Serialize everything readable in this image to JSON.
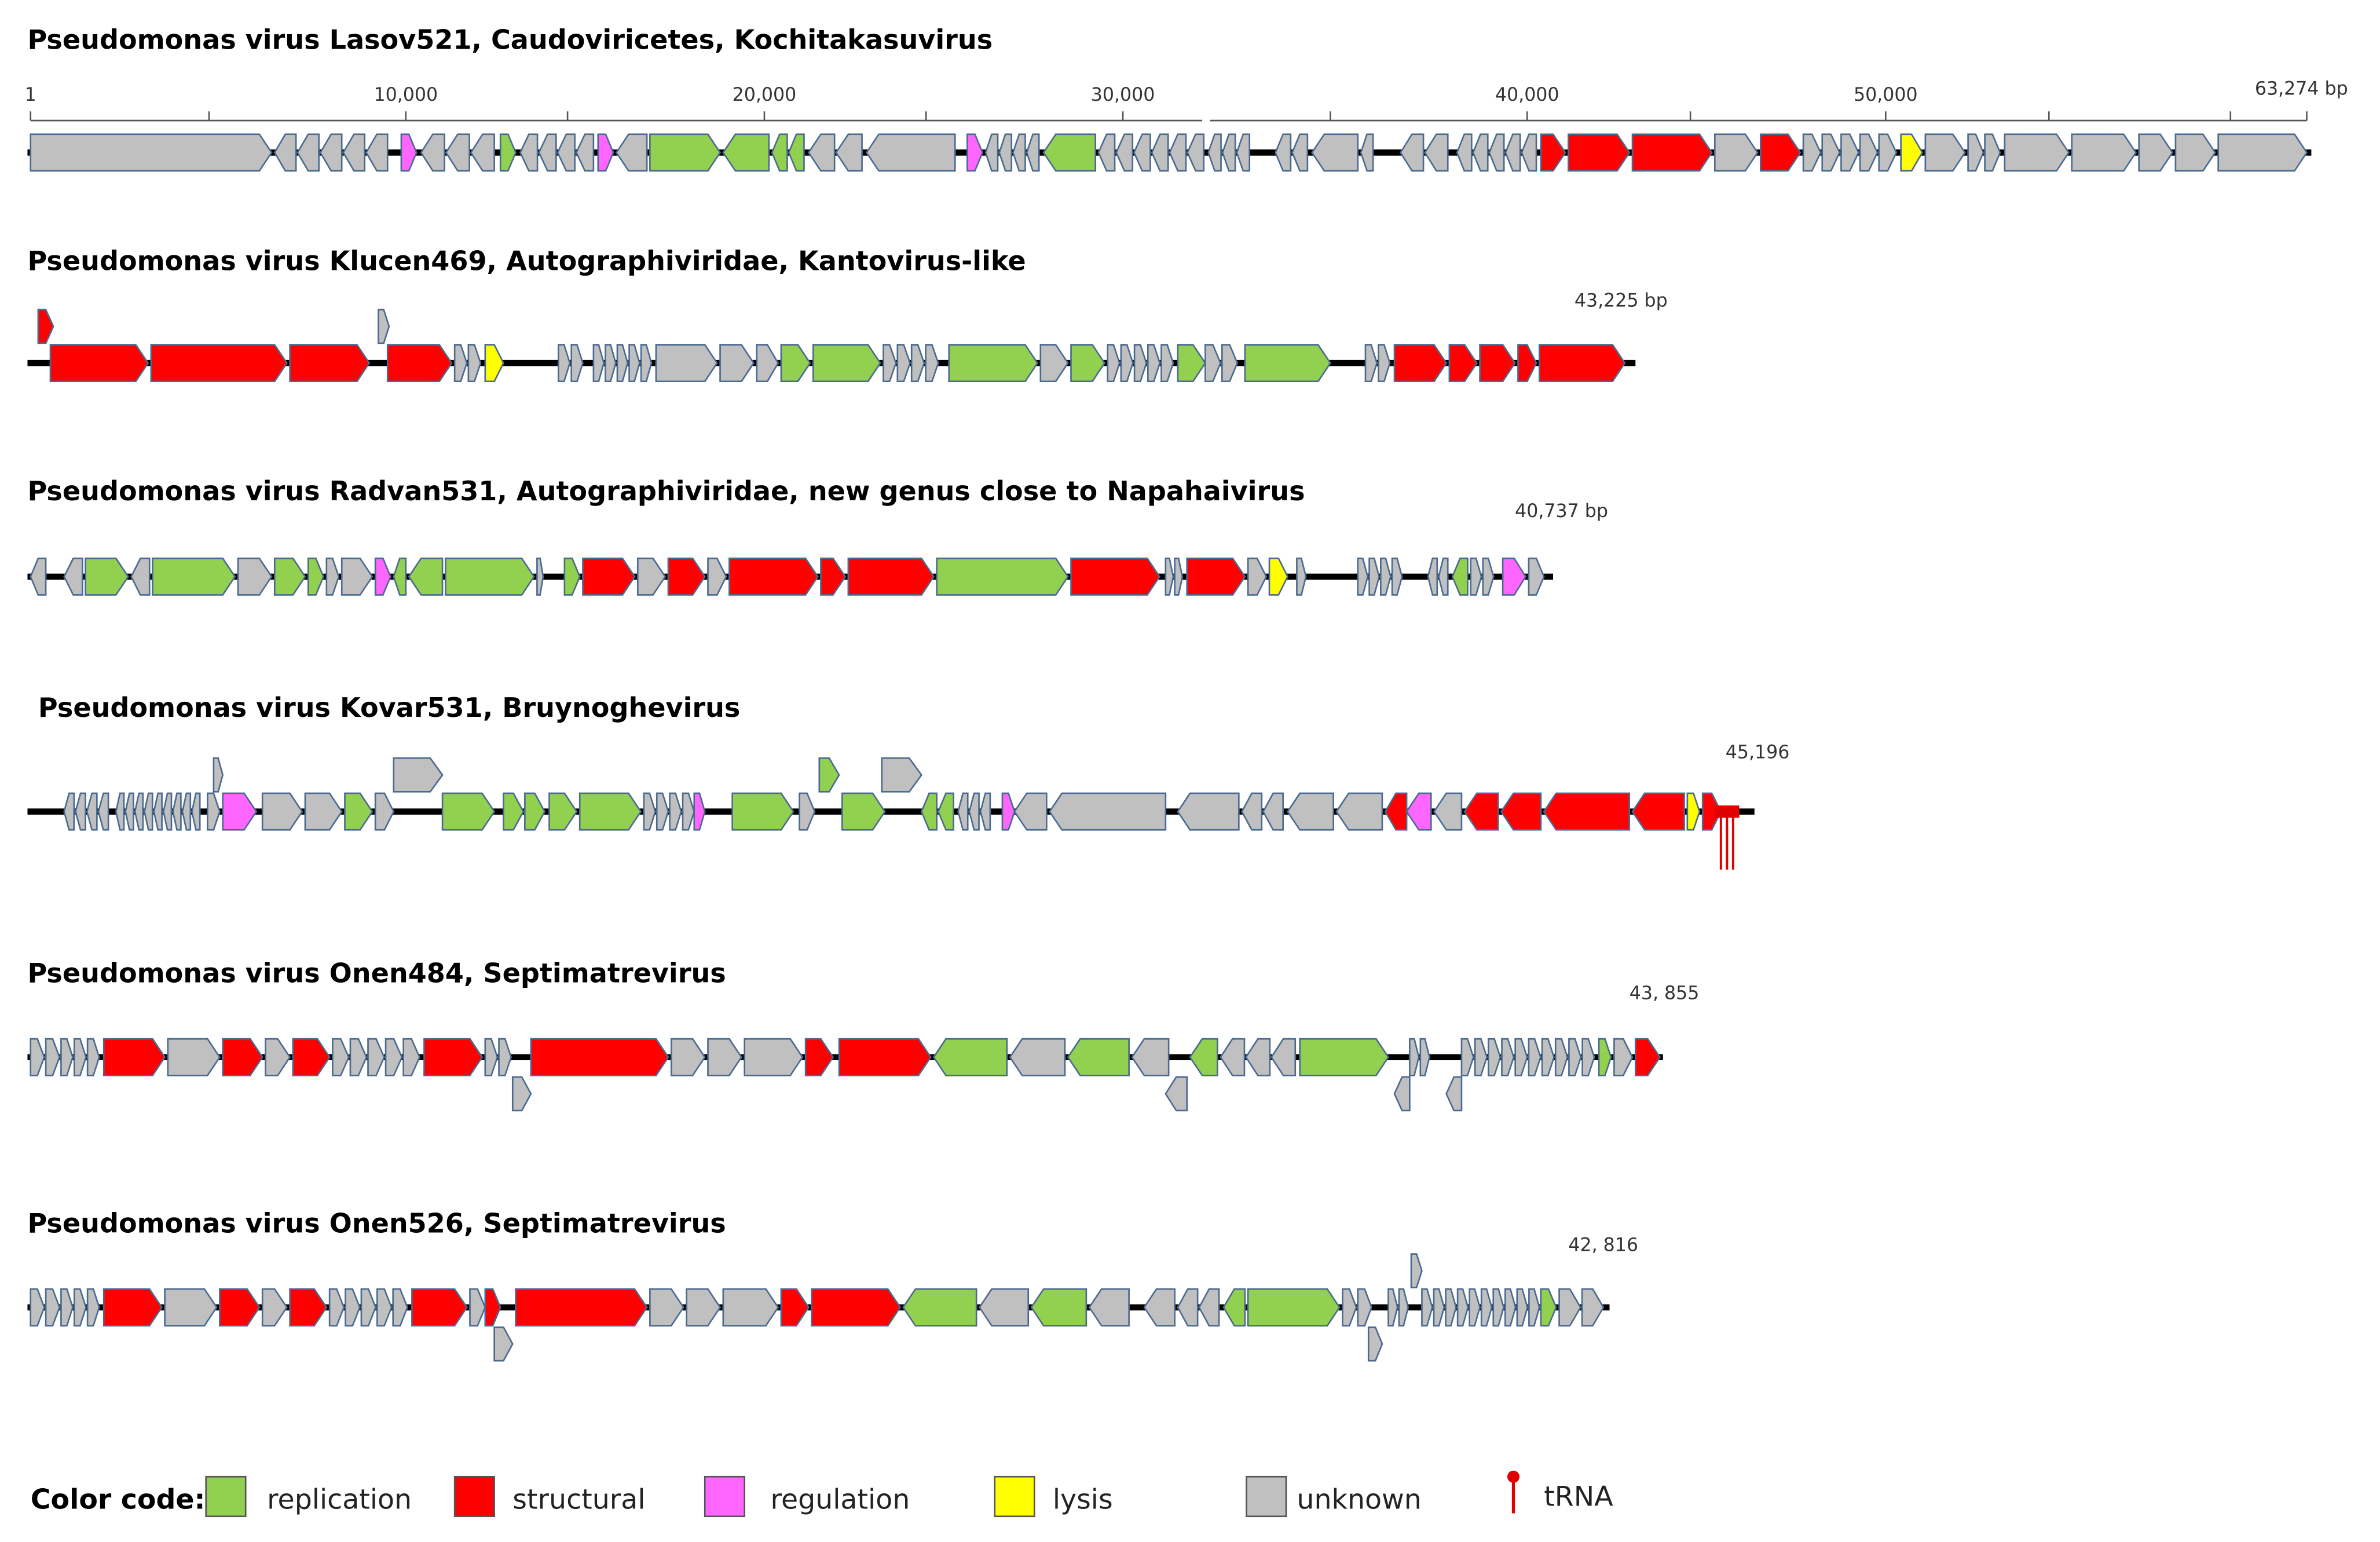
{
  "genomes": [
    {
      "title": "Pseudomonas virus Lasov521, Caudoviricetes, Kochitakasuvirus",
      "length_label": "63,274 bp",
      "ruler_ticks": [
        "1",
        "10,000",
        "20,000",
        "30,000",
        "40,000",
        "50,000"
      ]
    },
    {
      "title": "Pseudomonas virus Klucen469, Autographiviridae, Kantovirus-like",
      "length_label": "43,225 bp"
    },
    {
      "title": "Pseudomonas virus Radvan531, Autographiviridae, new genus close to Napahaivirus",
      "length_label": "40,737 bp"
    },
    {
      "title": "Pseudomonas virus Kovar531, Bruynoghevirus",
      "length_label": "45,196"
    },
    {
      "title": "Pseudomonas virus Onen484, Septimatrevirus",
      "length_label": "43, 855"
    },
    {
      "title": "Pseudomonas virus Onen526, Septimatrevirus",
      "length_label": "42, 816"
    }
  ],
  "legend": {
    "title": "Color code:",
    "items": [
      "replication",
      "structural",
      "regulation",
      "lysis",
      "unknown",
      "tRNA"
    ]
  }
}
